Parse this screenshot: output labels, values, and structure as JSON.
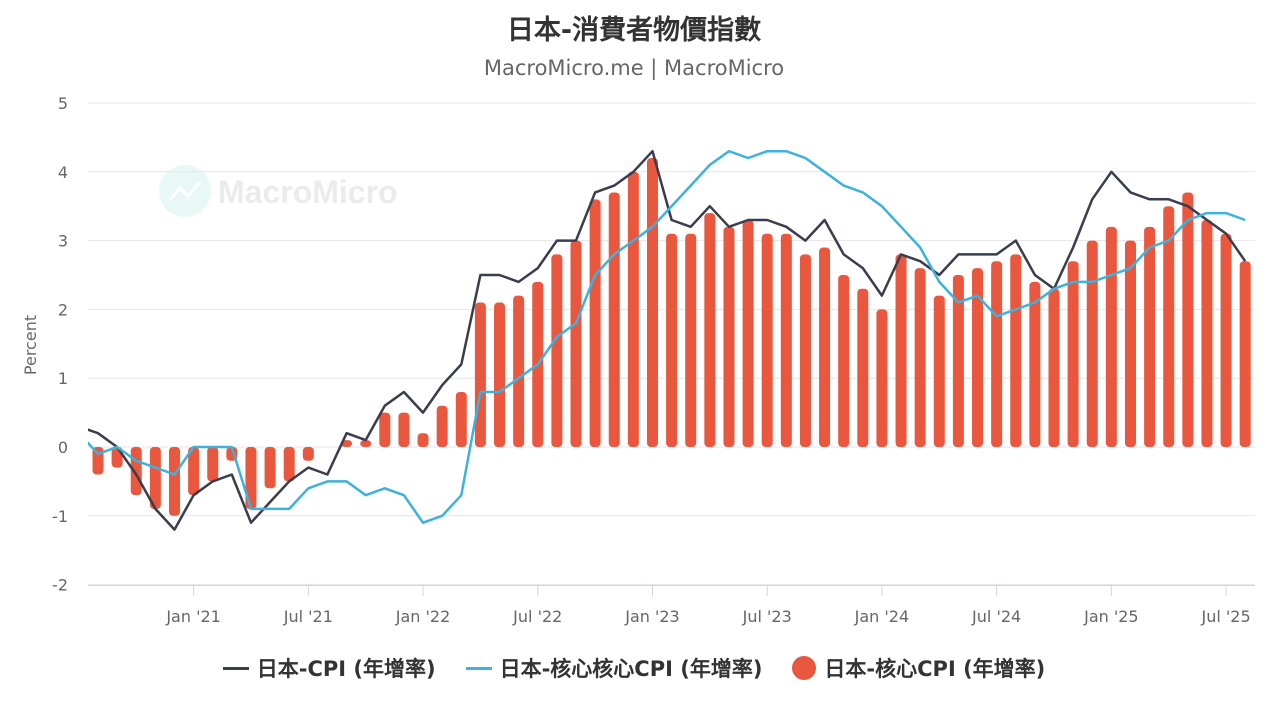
{
  "chart_data": {
    "type": "bar+line",
    "title": "日本-消費者物價指數",
    "subtitle": "MacroMicro.me | MacroMicro",
    "watermark": "MacroMicro",
    "ylabel": "Percent",
    "ylim": [
      -2,
      5
    ],
    "yticks": [
      -2,
      -1,
      0,
      1,
      2,
      3,
      4,
      5
    ],
    "grid": true,
    "legend_position": "bottom",
    "xticks": [
      {
        "label": "Jan '21",
        "month": "2021-01"
      },
      {
        "label": "Jul '21",
        "month": "2021-07"
      },
      {
        "label": "Jan '22",
        "month": "2022-01"
      },
      {
        "label": "Jul '22",
        "month": "2022-07"
      },
      {
        "label": "Jan '23",
        "month": "2023-01"
      },
      {
        "label": "Jul '23",
        "month": "2023-07"
      },
      {
        "label": "Jan '24",
        "month": "2024-01"
      },
      {
        "label": "Jul '24",
        "month": "2024-07"
      },
      {
        "label": "Jan '25",
        "month": "2025-01"
      },
      {
        "label": "Jul '25",
        "month": "2025-07"
      }
    ],
    "start_month": "2020-07",
    "series": [
      {
        "name": "日本-CPI (年增率)",
        "type": "line",
        "color": "#3a3d4d",
        "values": [
          0.3,
          0.2,
          0.0,
          -0.4,
          -0.9,
          -1.2,
          -0.7,
          -0.5,
          -0.4,
          -1.1,
          -0.8,
          -0.5,
          -0.3,
          -0.4,
          0.2,
          0.1,
          0.6,
          0.8,
          0.5,
          0.9,
          1.2,
          2.5,
          2.5,
          2.4,
          2.6,
          3.0,
          3.0,
          3.7,
          3.8,
          4.0,
          4.3,
          3.3,
          3.2,
          3.5,
          3.2,
          3.3,
          3.3,
          3.2,
          3.0,
          3.3,
          2.8,
          2.6,
          2.2,
          2.8,
          2.7,
          2.5,
          2.8,
          2.8,
          2.8,
          3.0,
          2.5,
          2.3,
          2.9,
          3.6,
          4.0,
          3.7,
          3.6,
          3.6,
          3.5,
          3.3,
          3.1,
          2.7
        ]
      },
      {
        "name": "日本-核心核心CPI (年增率)",
        "type": "line",
        "color": "#3eb1dc",
        "values": [
          0.2,
          -0.1,
          0.0,
          -0.2,
          -0.3,
          -0.4,
          0.0,
          0.0,
          0.0,
          -0.9,
          -0.9,
          -0.9,
          -0.6,
          -0.5,
          -0.5,
          -0.7,
          -0.6,
          -0.7,
          -1.1,
          -1.0,
          -0.7,
          0.8,
          0.8,
          1.0,
          1.2,
          1.6,
          1.8,
          2.5,
          2.8,
          3.0,
          3.2,
          3.5,
          3.8,
          4.1,
          4.3,
          4.2,
          4.3,
          4.3,
          4.2,
          4.0,
          3.8,
          3.7,
          3.5,
          3.2,
          2.9,
          2.4,
          2.1,
          2.2,
          1.9,
          2.0,
          2.1,
          2.3,
          2.4,
          2.4,
          2.5,
          2.6,
          2.9,
          3.0,
          3.3,
          3.4,
          3.4,
          3.3
        ]
      },
      {
        "name": "日本-核心CPI (年增率)",
        "type": "bar",
        "color": "#e8573e",
        "values": [
          0.0,
          -0.4,
          -0.3,
          -0.7,
          -0.9,
          -1.0,
          -0.7,
          -0.5,
          -0.2,
          -0.9,
          -0.6,
          -0.5,
          -0.2,
          0.0,
          0.1,
          0.1,
          0.5,
          0.5,
          0.2,
          0.6,
          0.8,
          2.1,
          2.1,
          2.2,
          2.4,
          2.8,
          3.0,
          3.6,
          3.7,
          4.0,
          4.2,
          3.1,
          3.1,
          3.4,
          3.2,
          3.3,
          3.1,
          3.1,
          2.8,
          2.9,
          2.5,
          2.3,
          2.0,
          2.8,
          2.6,
          2.2,
          2.5,
          2.6,
          2.7,
          2.8,
          2.4,
          2.3,
          2.7,
          3.0,
          3.2,
          3.0,
          3.2,
          3.5,
          3.7,
          3.3,
          3.1,
          2.7
        ]
      }
    ]
  }
}
